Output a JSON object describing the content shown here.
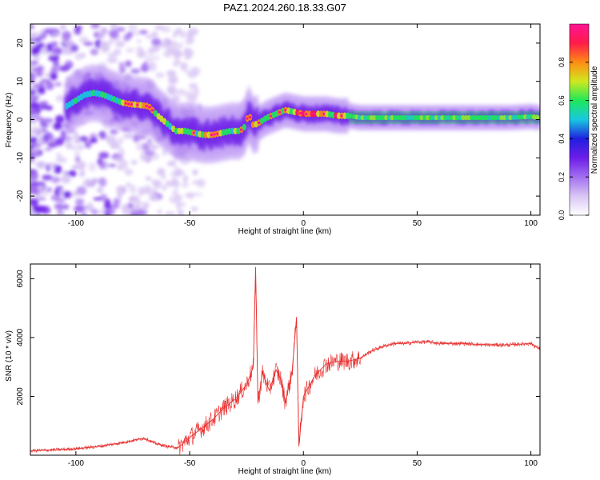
{
  "title": "PAZ1.2024.260.18.33.G07",
  "chart_data": [
    {
      "type": "heatmap",
      "xlabel": "Height of straight line (km)",
      "ylabel": "Frequency (Hz)",
      "xlim": [
        -120,
        104
      ],
      "ylim": [
        -25,
        25
      ],
      "xticks": [
        -100,
        -50,
        0,
        50,
        100
      ],
      "yticks": [
        -20,
        -10,
        0,
        10,
        20
      ],
      "colorbar": {
        "label": "Normalized spectral amplitude",
        "range": [
          0,
          1
        ],
        "ticks": [
          "0.0",
          "0.2",
          "0.4",
          "0.6",
          "0.8"
        ],
        "colors": [
          "#ffffff",
          "#d9c6f4",
          "#a26ff0",
          "#6d1de8",
          "#1f1fe0",
          "#18c8e0",
          "#1ee85a",
          "#cfe81e",
          "#ff8c14",
          "#ff1a4a",
          "#ff1493"
        ]
      },
      "ridge": {
        "x": [
          -104,
          -100,
          -96,
          -92,
          -88,
          -84,
          -80,
          -76,
          -72,
          -68,
          -64,
          -60,
          -56,
          -52,
          -48,
          -44,
          -40,
          -36,
          -32,
          -28,
          -26,
          -24,
          -22,
          -20,
          -16,
          -12,
          -8,
          -4,
          0,
          5,
          10,
          15,
          20,
          25,
          30,
          40,
          50,
          60,
          70,
          80,
          90,
          100,
          104
        ],
        "y": [
          3.5,
          5.0,
          6.5,
          7.0,
          6.5,
          5.5,
          4.5,
          4.0,
          3.8,
          3.5,
          1.0,
          -1.0,
          -3.0,
          -3.0,
          -3.5,
          -4.0,
          -4.0,
          -3.5,
          -3.0,
          -3.0,
          -2.0,
          1.5,
          -1.5,
          -1.0,
          0.5,
          1.5,
          2.5,
          2.0,
          1.5,
          1.5,
          1.5,
          1.0,
          1.0,
          0.5,
          0.5,
          0.5,
          0.5,
          0.5,
          0.5,
          0.5,
          0.5,
          0.8,
          0.5
        ]
      }
    },
    {
      "type": "line",
      "xlabel": "Height of straight line (km)",
      "ylabel": "SNR (10 * v/v)",
      "xlim": [
        -120,
        104
      ],
      "ylim": [
        0,
        6500
      ],
      "xticks": [
        -100,
        -50,
        0,
        50,
        100
      ],
      "yticks": [
        2000,
        4000,
        6000
      ],
      "color": "#e8302f",
      "x": [
        -120,
        -110,
        -100,
        -90,
        -80,
        -70,
        -65,
        -60,
        -55,
        -50,
        -45,
        -40,
        -35,
        -30,
        -25,
        -22,
        -21,
        -20,
        -18,
        -15,
        -12,
        -10,
        -8,
        -5,
        -3,
        -2,
        0,
        5,
        10,
        15,
        20,
        25,
        30,
        35,
        40,
        45,
        50,
        55,
        60,
        70,
        80,
        90,
        100,
        104
      ],
      "y": [
        150,
        180,
        220,
        300,
        420,
        580,
        400,
        300,
        250,
        600,
        900,
        1200,
        1600,
        1900,
        2400,
        3000,
        6400,
        1800,
        2800,
        2200,
        2900,
        2600,
        1800,
        2800,
        4700,
        300,
        2000,
        2700,
        3100,
        3200,
        3200,
        3300,
        3550,
        3700,
        3800,
        3800,
        3850,
        3850,
        3800,
        3800,
        3750,
        3750,
        3800,
        3600
      ]
    }
  ]
}
